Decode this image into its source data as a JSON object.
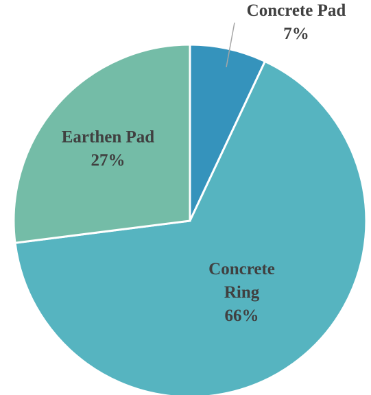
{
  "chart_data": {
    "type": "pie",
    "slices": [
      {
        "label": "Concrete Pad",
        "value": 7,
        "value_label": "7%",
        "color": "#3593bc"
      },
      {
        "label": "Concrete Ring",
        "value": 66,
        "value_label": "66%",
        "color": "#56b4c0"
      },
      {
        "label": "Earthen Pad",
        "value": 27,
        "value_label": "27%",
        "color": "#74bca7"
      }
    ],
    "start_angle": "12 o'clock",
    "direction": "clockwise",
    "legend": "none",
    "data_labels": "category name and percentage"
  }
}
